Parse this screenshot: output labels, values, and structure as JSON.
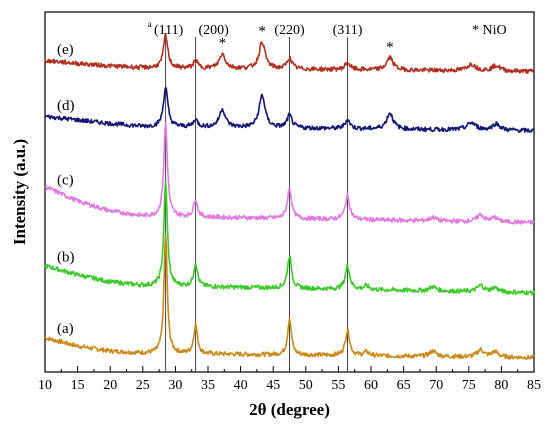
{
  "chart_data": {
    "type": "line",
    "title": "",
    "xlabel": "2θ (degree)",
    "ylabel": "Intensity (a.u.)",
    "xlim": [
      10,
      85
    ],
    "xticks": [
      10,
      15,
      20,
      25,
      30,
      35,
      40,
      45,
      50,
      55,
      60,
      65,
      70,
      75,
      80,
      85
    ],
    "x_tick_labels": [
      "10",
      "15",
      "20",
      "25",
      "30",
      "35",
      "40",
      "45",
      "50",
      "55",
      "60",
      "65",
      "70",
      "75",
      "80",
      "85"
    ],
    "y_ticks_shown": false,
    "grid": false,
    "legend_text": "* NiO",
    "reference_lines": [
      {
        "x": 28.5,
        "label": "(111)",
        "prefix": "a"
      },
      {
        "x": 33.1,
        "label": "(200)"
      },
      {
        "x": 47.5,
        "label": "(220)"
      },
      {
        "x": 56.4,
        "label": "(311)"
      }
    ],
    "series": [
      {
        "name": "(a)",
        "color": "#c98a1b",
        "baseline": 0.04,
        "background": [
          [
            10,
            0.055
          ],
          [
            15,
            0.032
          ],
          [
            20,
            0.018
          ],
          [
            25,
            0.012
          ],
          [
            85,
            0.0
          ]
        ],
        "peaks": [
          [
            28.5,
            0.33,
            0.3
          ],
          [
            33.1,
            0.08,
            0.35
          ],
          [
            47.5,
            0.1,
            0.35
          ],
          [
            56.4,
            0.07,
            0.4
          ],
          [
            59.3,
            0.01,
            0.5
          ],
          [
            69.5,
            0.015,
            0.6
          ],
          [
            76.8,
            0.02,
            0.6
          ],
          [
            79.0,
            0.015,
            0.6
          ]
        ]
      },
      {
        "name": "(b)",
        "color": "#3cc92a",
        "baseline": 0.22,
        "background": [
          [
            10,
            0.075
          ],
          [
            15,
            0.05
          ],
          [
            20,
            0.03
          ],
          [
            25,
            0.02
          ],
          [
            85,
            0.0
          ]
        ],
        "peaks": [
          [
            28.5,
            0.29,
            0.32
          ],
          [
            33.1,
            0.065,
            0.35
          ],
          [
            47.5,
            0.09,
            0.38
          ],
          [
            56.4,
            0.065,
            0.42
          ],
          [
            59.3,
            0.01,
            0.5
          ],
          [
            69.5,
            0.012,
            0.6
          ],
          [
            76.8,
            0.018,
            0.6
          ],
          [
            79.0,
            0.012,
            0.6
          ]
        ]
      },
      {
        "name": "(c)",
        "color": "#e07ae0",
        "baseline": 0.415,
        "background": [
          [
            10,
            0.1
          ],
          [
            15,
            0.06
          ],
          [
            20,
            0.032
          ],
          [
            25,
            0.018
          ],
          [
            85,
            0.0
          ]
        ],
        "peaks": [
          [
            28.5,
            0.26,
            0.33
          ],
          [
            33.1,
            0.05,
            0.35
          ],
          [
            47.5,
            0.085,
            0.38
          ],
          [
            56.4,
            0.065,
            0.42
          ],
          [
            69.5,
            0.01,
            0.6
          ],
          [
            76.8,
            0.02,
            0.6
          ],
          [
            79.0,
            0.012,
            0.6
          ]
        ]
      },
      {
        "name": "(d)",
        "color": "#141472",
        "baseline": 0.67,
        "background": [
          [
            10,
            0.04
          ],
          [
            15,
            0.03
          ],
          [
            20,
            0.02
          ],
          [
            25,
            0.012
          ],
          [
            85,
            0.0
          ]
        ],
        "peaks": [
          [
            28.5,
            0.11,
            0.4
          ],
          [
            33.1,
            0.02,
            0.4
          ],
          [
            37.2,
            0.05,
            0.55
          ],
          [
            43.3,
            0.09,
            0.55
          ],
          [
            47.5,
            0.035,
            0.45
          ],
          [
            56.4,
            0.025,
            0.45
          ],
          [
            62.9,
            0.045,
            0.6
          ],
          [
            75.4,
            0.02,
            0.8
          ],
          [
            79.2,
            0.018,
            0.7
          ]
        ]
      },
      {
        "name": "(e)",
        "color": "#b03020",
        "baseline": 0.835,
        "background": [
          [
            10,
            0.03
          ],
          [
            15,
            0.022
          ],
          [
            20,
            0.015
          ],
          [
            25,
            0.01
          ],
          [
            85,
            0.0
          ]
        ],
        "peaks": [
          [
            28.5,
            0.09,
            0.4
          ],
          [
            33.1,
            0.02,
            0.4
          ],
          [
            37.2,
            0.04,
            0.55
          ],
          [
            43.3,
            0.075,
            0.55
          ],
          [
            47.5,
            0.03,
            0.45
          ],
          [
            56.4,
            0.02,
            0.45
          ],
          [
            62.9,
            0.035,
            0.6
          ],
          [
            75.4,
            0.018,
            0.8
          ],
          [
            79.2,
            0.015,
            0.7
          ]
        ]
      }
    ],
    "nio_markers": [
      {
        "x": 37.2,
        "series": "(e)",
        "label": "*"
      },
      {
        "x": 43.3,
        "series": "(e)",
        "label": "*"
      },
      {
        "x": 62.9,
        "series": "(e)",
        "label": "*"
      }
    ]
  }
}
